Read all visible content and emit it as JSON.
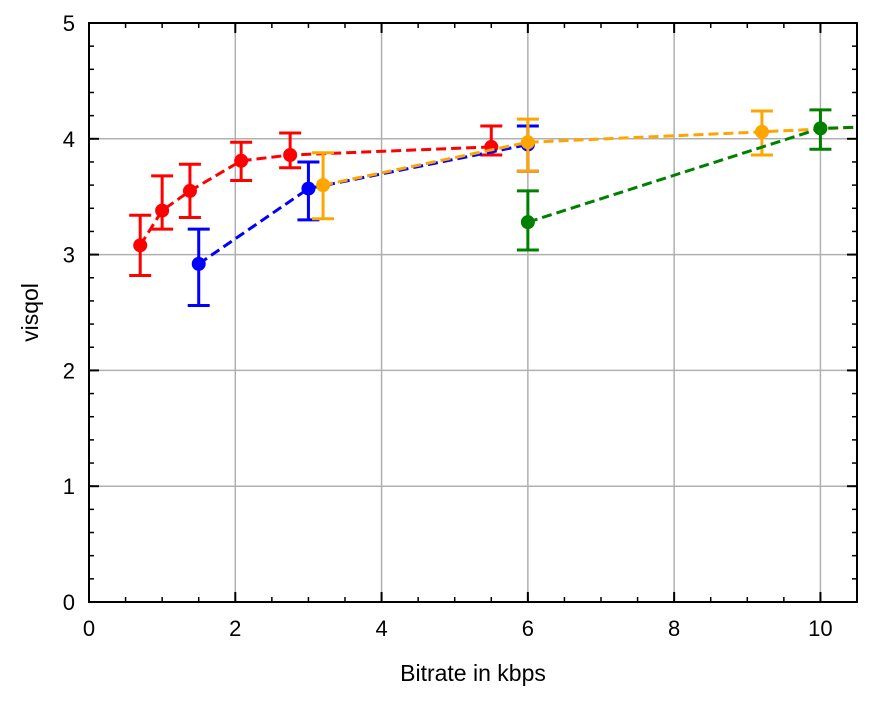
{
  "chart_data": {
    "type": "line",
    "title": "",
    "xlabel": "Bitrate in kbps",
    "ylabel": "visqol",
    "xlim": [
      0,
      10.5
    ],
    "ylim": [
      0,
      5
    ],
    "xticks": [
      0,
      2,
      4,
      6,
      8,
      10
    ],
    "yticks": [
      0,
      1,
      2,
      3,
      4,
      5
    ],
    "x_minor_step": 0.5,
    "y_minor_step": 0.2,
    "grid": true,
    "legend": "none",
    "series": [
      {
        "color": "#ff0000",
        "points": [
          {
            "x": 0.7,
            "y": 3.08,
            "lo": 2.82,
            "hi": 3.34
          },
          {
            "x": 1.0,
            "y": 3.38,
            "lo": 3.22,
            "hi": 3.68
          },
          {
            "x": 1.38,
            "y": 3.55,
            "lo": 3.32,
            "hi": 3.78
          },
          {
            "x": 2.08,
            "y": 3.81,
            "lo": 3.64,
            "hi": 3.97
          },
          {
            "x": 2.75,
            "y": 3.86,
            "lo": 3.75,
            "hi": 4.05
          },
          {
            "x": 5.5,
            "y": 3.93,
            "lo": 3.86,
            "hi": 4.11
          }
        ]
      },
      {
        "color": "#0000ff",
        "points": [
          {
            "x": 1.5,
            "y": 2.92,
            "lo": 2.56,
            "hi": 3.22
          },
          {
            "x": 3.0,
            "y": 3.57,
            "lo": 3.3,
            "hi": 3.8
          },
          {
            "x": 6.0,
            "y": 3.95,
            "lo": 3.72,
            "hi": 4.11
          }
        ]
      },
      {
        "color": "#ffa500",
        "points": [
          {
            "x": 3.2,
            "y": 3.6,
            "lo": 3.31,
            "hi": 3.88
          },
          {
            "x": 6.0,
            "y": 3.97,
            "lo": 3.72,
            "hi": 4.17
          },
          {
            "x": 9.2,
            "y": 4.06,
            "lo": 3.86,
            "hi": 4.24
          }
        ],
        "trail_to": {
          "x": 10.5,
          "y": 4.1
        }
      },
      {
        "color": "#008000",
        "points": [
          {
            "x": 6.0,
            "y": 3.28,
            "lo": 3.04,
            "hi": 3.55
          },
          {
            "x": 10.0,
            "y": 4.09,
            "lo": 3.91,
            "hi": 4.25
          }
        ],
        "trail_to": {
          "x": 10.5,
          "y": 4.1
        }
      }
    ]
  }
}
